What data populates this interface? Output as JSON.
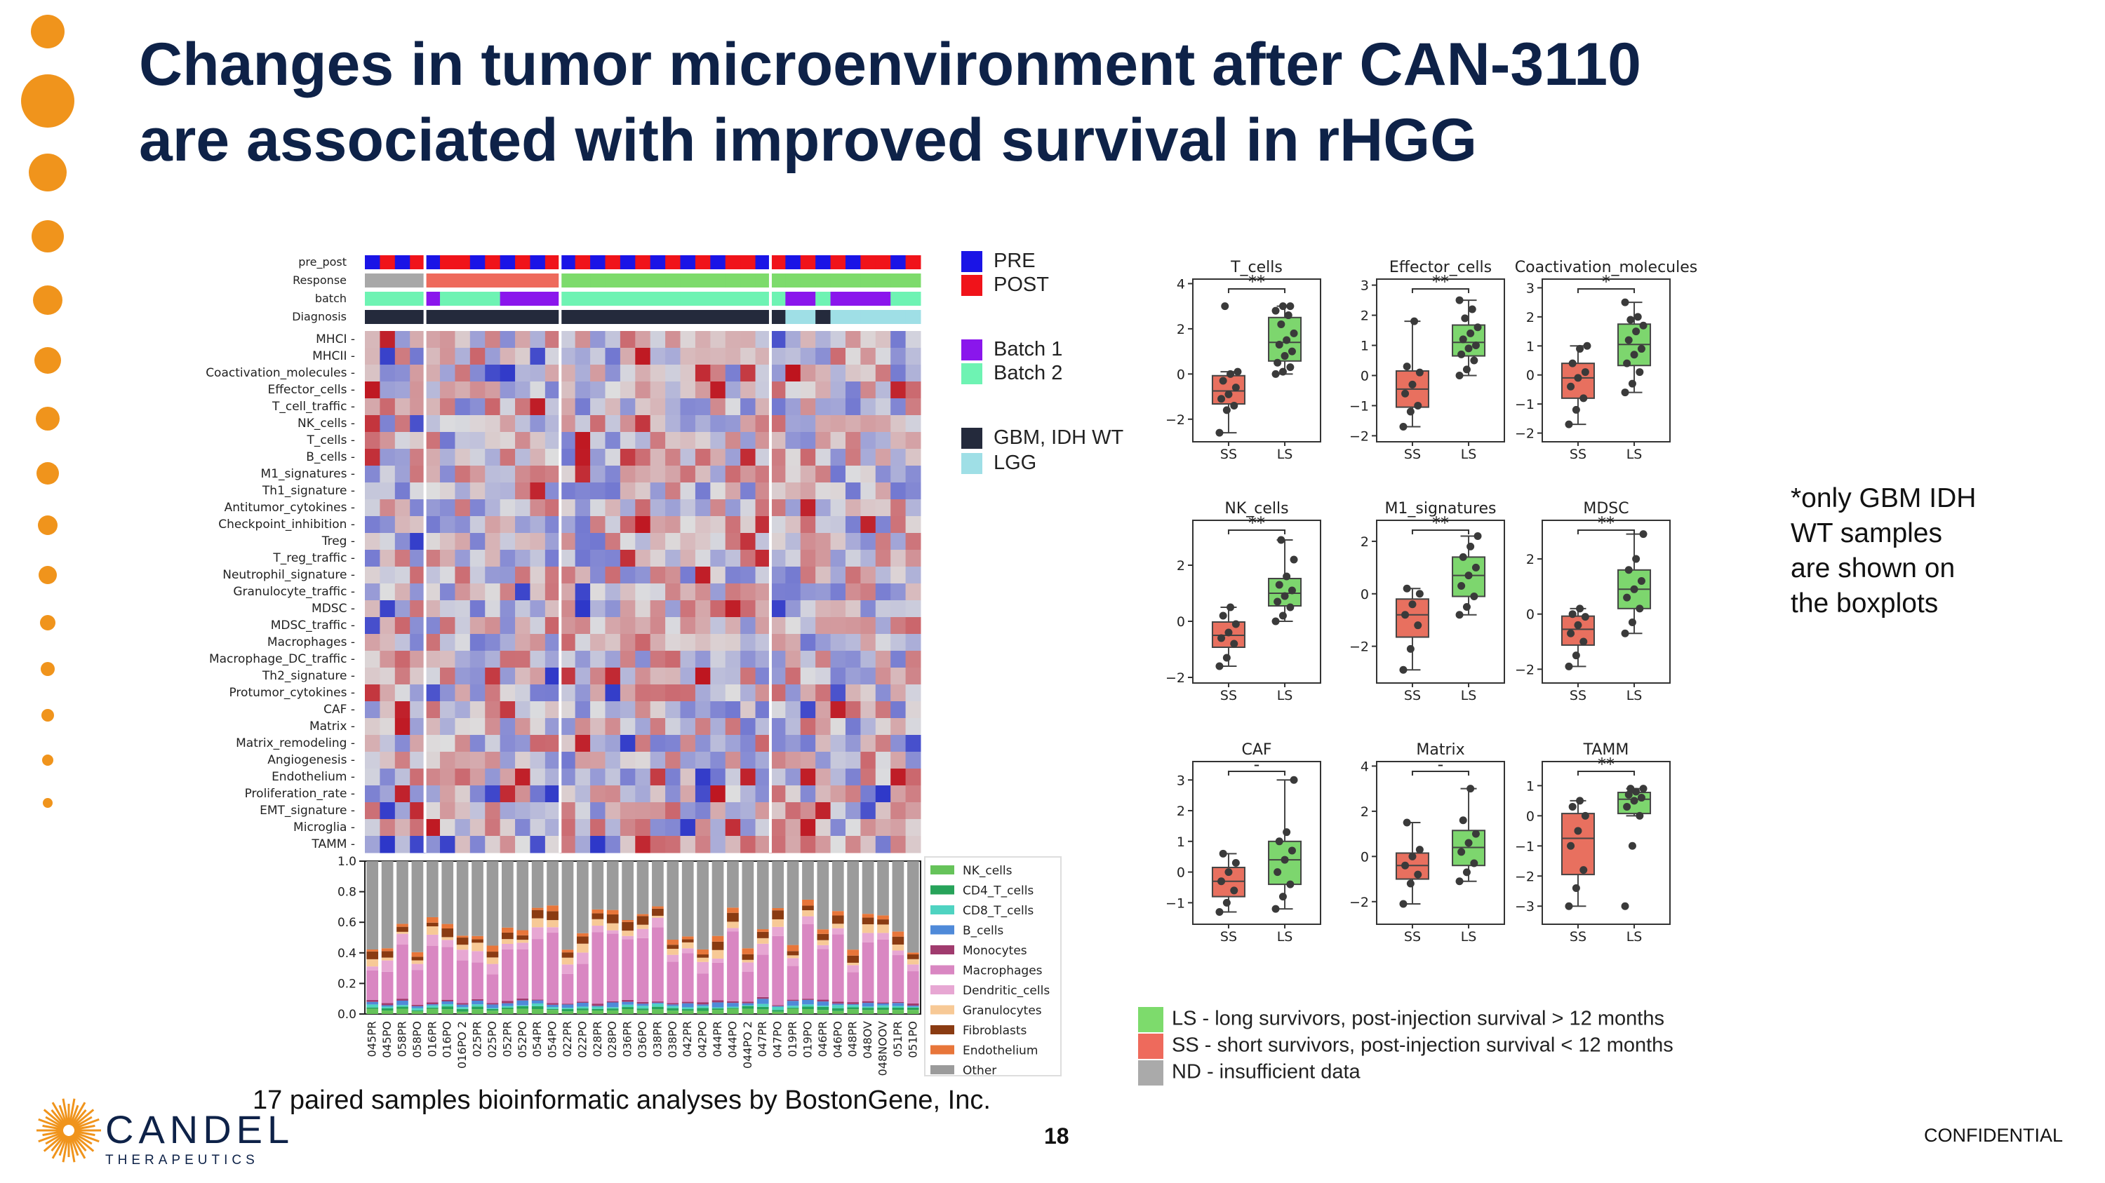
{
  "slide": {
    "title_line1": "Changes in tumor microenvironment after CAN-3110",
    "title_line2": "are associated with improved survival in rHGG",
    "note": [
      "*only GBM IDH",
      "WT samples",
      "are shown on",
      "the boxplots"
    ],
    "footer": "17 paired samples bioinformatic analyses by BostonGene, Inc.",
    "page_number": "18",
    "confidential": "CONFIDENTIAL",
    "logo_word": "CANDEL",
    "logo_sub": "THERAPEUTICS"
  },
  "heatmap_legend": {
    "pre_post": [
      {
        "label": "PRE",
        "color": "#1a14e6"
      },
      {
        "label": "POST",
        "color": "#f0131a"
      }
    ],
    "batch": [
      {
        "label": "Batch 1",
        "color": "#8a16ec"
      },
      {
        "label": "Batch 2",
        "color": "#6ef3b3"
      }
    ],
    "diagnosis": [
      {
        "label": "GBM, IDH WT",
        "color": "#242a3c"
      },
      {
        "label": "LGG",
        "color": "#9fdfe6"
      }
    ]
  },
  "survival_legend": [
    {
      "label": "LS - long survivors, post-injection survival > 12 months",
      "color": "#7ddb6c"
    },
    {
      "label": "SS - short survivors, post-injection survival < 12 months",
      "color": "#ee6a5c"
    },
    {
      "label": "ND - insufficient data",
      "color": "#aaaaaa"
    }
  ],
  "chart_data": [
    {
      "type": "heatmap",
      "title": "",
      "annotation_rows": [
        "pre_post",
        "Response",
        "batch",
        "Diagnosis"
      ],
      "rows": [
        "MHCI",
        "MHCII",
        "Coactivation_molecules",
        "Effector_cells",
        "T_cell_traffic",
        "NK_cells",
        "T_cells",
        "B_cells",
        "M1_signatures",
        "Th1_signature",
        "Antitumor_cytokines",
        "Checkpoint_inhibition",
        "Treg",
        "T_reg_traffic",
        "Neutrophil_signature",
        "Granulocyte_traffic",
        "MDSC",
        "MDSC_traffic",
        "Macrophages",
        "Macrophage_DC_traffic",
        "Th2_signature",
        "Protumor_cytokines",
        "CAF",
        "Matrix",
        "Matrix_remodeling",
        "Angiogenesis",
        "Endothelium",
        "Proliferation_rate",
        "EMT_signature",
        "Microglia",
        "TAMM"
      ],
      "columns": [
        "045PR",
        "045PO",
        "058PR",
        "058PO",
        "016PR",
        "016PO",
        "016PO 2",
        "025PR",
        "025PO",
        "052PR",
        "052PO",
        "054PR",
        "054PO",
        "022PR",
        "022PO",
        "028PR",
        "028PO",
        "036PR",
        "036PO",
        "038PR",
        "038PO",
        "042PR",
        "042PO",
        "044PR",
        "044PO",
        "044PO 2",
        "047PR",
        "047PO",
        "019PR",
        "019PO",
        "046PR",
        "046PO",
        "048PR",
        "048OV",
        "048NOOV",
        "051PR",
        "051PO"
      ],
      "value_scale": "z-score, blue (low) to red (high)"
    },
    {
      "type": "bar",
      "stacked": true,
      "ylabel": "",
      "ylim": [
        0,
        1.0
      ],
      "yticks": [
        "0.0",
        "0.2",
        "0.4",
        "0.6",
        "0.8",
        "1.0"
      ],
      "categories": [
        "045PR",
        "045PO",
        "058PR",
        "058PO",
        "016PR",
        "016PO",
        "016PO 2",
        "025PR",
        "025PO",
        "052PR",
        "052PO",
        "054PR",
        "054PO",
        "022PR",
        "022PO",
        "028PR",
        "028PO",
        "036PR",
        "036PO",
        "038PR",
        "038PO",
        "042PR",
        "042PO",
        "044PR",
        "044PO",
        "044PO 2",
        "047PR",
        "047PO",
        "019PR",
        "019PO",
        "046PR",
        "046PO",
        "048PR",
        "048OV",
        "048NOOV",
        "051PR",
        "051PO"
      ],
      "legend": [
        {
          "name": "NK_cells",
          "color": "#66c35a"
        },
        {
          "name": "CD4_T_cells",
          "color": "#27a35a"
        },
        {
          "name": "CD8_T_cells",
          "color": "#4fd3c1"
        },
        {
          "name": "B_cells",
          "color": "#4f8ad9"
        },
        {
          "name": "Monocytes",
          "color": "#a03b6e"
        },
        {
          "name": "Macrophages",
          "color": "#d987c2"
        },
        {
          "name": "Dendritic_cells",
          "color": "#e7a7d3"
        },
        {
          "name": "Granulocytes",
          "color": "#f7c996"
        },
        {
          "name": "Fibroblasts",
          "color": "#8a3b12"
        },
        {
          "name": "Endothelium",
          "color": "#e8763a"
        },
        {
          "name": "Other",
          "color": "#9b9b9b"
        }
      ]
    },
    {
      "type": "scatter",
      "subtype": "boxplot",
      "panels": [
        {
          "title": "T_cells",
          "sig": "**",
          "ylim": [
            -3,
            4.2
          ],
          "yticks": [
            -2,
            0,
            2,
            4
          ],
          "SS": [
            -2.6,
            -1.6,
            -1.4,
            -1.1,
            -0.9,
            -0.6,
            -0.3,
            0.0,
            0.1,
            3.0
          ],
          "LS": [
            0.0,
            0.1,
            0.3,
            0.5,
            0.8,
            1.0,
            1.3,
            1.5,
            1.8,
            2.2,
            2.6,
            2.8,
            3.0,
            3.0
          ]
        },
        {
          "title": "Effector_cells",
          "sig": "**",
          "ylim": [
            -2.2,
            3.2
          ],
          "yticks": [
            -2,
            -1,
            0,
            1,
            2,
            3
          ],
          "SS": [
            -1.7,
            -1.2,
            -1.0,
            -0.6,
            -0.3,
            0.1,
            0.3,
            1.8
          ],
          "LS": [
            0.0,
            0.2,
            0.5,
            0.7,
            0.9,
            1.0,
            1.2,
            1.4,
            1.6,
            1.9,
            2.2,
            2.5
          ]
        },
        {
          "title": "Coactivation_molecules",
          "sig": "*",
          "ylim": [
            -2.3,
            3.3
          ],
          "yticks": [
            -2,
            -1,
            0,
            1,
            2,
            3
          ],
          "SS": [
            -1.7,
            -1.2,
            -0.8,
            -0.4,
            -0.1,
            0.1,
            0.4,
            0.9,
            1.0
          ],
          "LS": [
            -0.6,
            -0.3,
            0.1,
            0.4,
            0.7,
            0.9,
            1.2,
            1.5,
            1.7,
            1.9,
            2.0,
            2.5
          ]
        },
        {
          "title": "NK_cells",
          "sig": "**",
          "ylim": [
            -2.2,
            3.6
          ],
          "yticks": [
            -2,
            0,
            2
          ],
          "SS": [
            -1.6,
            -1.3,
            -0.8,
            -0.6,
            -0.4,
            -0.1,
            0.2,
            0.5
          ],
          "LS": [
            0.0,
            0.2,
            0.5,
            0.7,
            0.9,
            1.1,
            1.3,
            1.6,
            2.2,
            2.9
          ]
        },
        {
          "title": "M1_signatures",
          "sig": "**",
          "ylim": [
            -3.4,
            2.8
          ],
          "yticks": [
            -2,
            0,
            2
          ],
          "SS": [
            -2.9,
            -2.1,
            -1.2,
            -0.8,
            -0.4,
            0.0,
            0.2
          ],
          "LS": [
            -0.8,
            -0.5,
            -0.1,
            0.3,
            0.7,
            1.0,
            1.4,
            1.8,
            2.2
          ]
        },
        {
          "title": "MDSC",
          "sig": "**",
          "ylim": [
            -2.5,
            3.4
          ],
          "yticks": [
            -2,
            0,
            2
          ],
          "SS": [
            -1.9,
            -1.5,
            -1.0,
            -0.7,
            -0.4,
            -0.1,
            0.0,
            0.2
          ],
          "LS": [
            -0.7,
            -0.3,
            0.2,
            0.6,
            0.9,
            1.2,
            1.6,
            2.0,
            2.9
          ]
        },
        {
          "title": "CAF",
          "sig": "-",
          "ylim": [
            -1.7,
            3.6
          ],
          "yticks": [
            -1,
            0,
            1,
            2,
            3
          ],
          "SS": [
            -1.3,
            -1.0,
            -0.6,
            -0.3,
            0.0,
            0.3,
            0.6
          ],
          "LS": [
            -1.2,
            -0.8,
            -0.4,
            0.0,
            0.4,
            0.7,
            1.0,
            1.3,
            3.0
          ]
        },
        {
          "title": "Matrix",
          "sig": "-",
          "ylim": [
            -3.0,
            4.2
          ],
          "yticks": [
            -2,
            0,
            2,
            4
          ],
          "SS": [
            -2.1,
            -1.2,
            -0.8,
            -0.4,
            0.0,
            0.3,
            1.5
          ],
          "LS": [
            -1.1,
            -0.7,
            -0.3,
            0.2,
            0.6,
            1.0,
            1.6,
            3.0
          ]
        },
        {
          "title": "TAMM",
          "sig": "**",
          "ylim": [
            -3.6,
            1.8
          ],
          "yticks": [
            -3,
            -2,
            -1,
            0,
            1
          ],
          "SS": [
            -3.0,
            -2.4,
            -1.8,
            -1.0,
            -0.5,
            0.0,
            0.3,
            0.5
          ],
          "LS": [
            -3.0,
            -1.0,
            0.0,
            0.3,
            0.5,
            0.6,
            0.7,
            0.8,
            0.9,
            0.9
          ]
        }
      ],
      "groups": [
        "SS",
        "LS"
      ]
    }
  ]
}
